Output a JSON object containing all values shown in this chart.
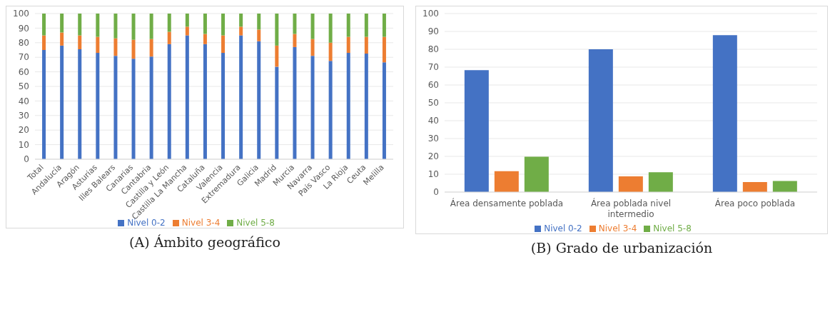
{
  "chart_data": [
    {
      "type": "bar",
      "title": "(A) Ámbito geográfico",
      "stacked": true,
      "categories": [
        "Total",
        "Andalucía",
        "Aragón",
        "Asturias",
        "Illes Balears",
        "Canarias",
        "Cantabria",
        "Castilla y León",
        "Castilla La Mancha",
        "Cataluña",
        "Valencia",
        "Extremadura",
        "Galicia",
        "Madrid",
        "Murcia",
        "Navarra",
        "País Vasco",
        "La Rioja",
        "Ceuta",
        "Melilla"
      ],
      "series": [
        {
          "name": "Nivel 0-2",
          "color": "#4472c4",
          "values": [
            75,
            78,
            75.5,
            73,
            71,
            69,
            70.5,
            79,
            85,
            79,
            73,
            85,
            81,
            63.5,
            77,
            71,
            67.5,
            73,
            72.5,
            66.5
          ]
        },
        {
          "name": "Nivel 3-4",
          "color": "#ed7d31",
          "values": [
            10,
            9,
            9.5,
            11,
            12,
            13,
            12,
            8.5,
            6,
            7,
            12,
            6,
            8,
            14.5,
            9,
            11.5,
            12.5,
            11,
            11.5,
            17.5
          ]
        },
        {
          "name": "Nivel 5-8",
          "color": "#70ad47",
          "values": [
            15,
            13,
            15,
            16,
            17,
            18,
            17.5,
            12.5,
            9,
            14,
            15,
            9,
            11,
            22,
            14,
            17.5,
            20,
            16,
            16,
            16
          ]
        }
      ],
      "ylim": [
        0,
        100
      ],
      "yticks": [
        0,
        10,
        20,
        30,
        40,
        50,
        60,
        70,
        80,
        90,
        100
      ],
      "grid": "y",
      "legend": "bottom"
    },
    {
      "type": "bar",
      "title": "(B) Grado de urbanización",
      "categories": [
        "Área densamente poblada",
        "Área poblada nivel intermedio",
        "Área poco poblada"
      ],
      "series": [
        {
          "name": "Nivel 0-2",
          "color": "#4472c4",
          "values": [
            68.3,
            80,
            87.9
          ]
        },
        {
          "name": "Nivel 3-4",
          "color": "#ed7d31",
          "values": [
            11.7,
            8.8,
            5.6
          ]
        },
        {
          "name": "Nivel 5-8",
          "color": "#70ad47",
          "values": [
            19.8,
            11.1,
            6.2
          ]
        }
      ],
      "ylim": [
        0,
        100
      ],
      "yticks": [
        0,
        10,
        20,
        30,
        40,
        50,
        60,
        70,
        80,
        90,
        100
      ],
      "grid": "y",
      "legend": "bottom"
    }
  ]
}
